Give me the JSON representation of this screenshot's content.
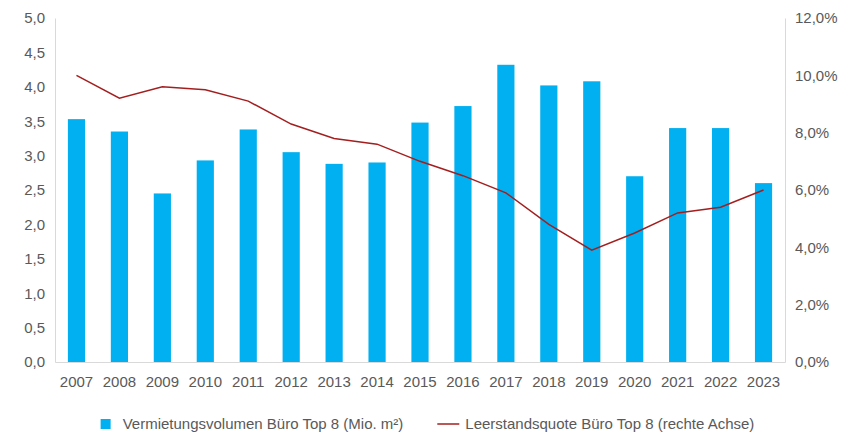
{
  "chart_data": {
    "type": "bar",
    "categories": [
      "2007",
      "2008",
      "2009",
      "2010",
      "2011",
      "2012",
      "2013",
      "2014",
      "2015",
      "2016",
      "2017",
      "2018",
      "2019",
      "2020",
      "2021",
      "2022",
      "2023"
    ],
    "series": [
      {
        "name": "Vermietungsvolumen Büro Top 8 (Mio. m²)",
        "type": "bar",
        "color": "#00b0f0",
        "values": [
          3.53,
          3.35,
          2.45,
          2.93,
          3.38,
          3.05,
          2.88,
          2.9,
          3.48,
          3.72,
          4.32,
          4.02,
          4.08,
          2.7,
          3.4,
          3.4,
          2.6
        ]
      },
      {
        "name": "Leerstandsquote Büro Top 8 (rechte Achse)",
        "type": "line",
        "axis": "y2",
        "color": "#a31f1f",
        "values": [
          10.0,
          9.2,
          9.6,
          9.5,
          9.1,
          8.3,
          7.8,
          7.6,
          7.0,
          6.5,
          5.9,
          4.8,
          3.9,
          4.5,
          5.2,
          5.4,
          6.0
        ]
      }
    ],
    "ylim": [
      0,
      5
    ],
    "yticks": [
      {
        "value": 0,
        "label": "0,0"
      },
      {
        "value": 0.5,
        "label": "0,5"
      },
      {
        "value": 1,
        "label": "1,0"
      },
      {
        "value": 1.5,
        "label": "1,5"
      },
      {
        "value": 2,
        "label": "2,0"
      },
      {
        "value": 2.5,
        "label": "2,5"
      },
      {
        "value": 3,
        "label": "3,0"
      },
      {
        "value": 3.5,
        "label": "3,5"
      },
      {
        "value": 4,
        "label": "4,0"
      },
      {
        "value": 4.5,
        "label": "4,5"
      },
      {
        "value": 5,
        "label": "5,0"
      }
    ],
    "y2lim": [
      0,
      12
    ],
    "y2ticks": [
      {
        "value": 0,
        "label": "0,0%"
      },
      {
        "value": 2,
        "label": "2,0%"
      },
      {
        "value": 4,
        "label": "4,0%"
      },
      {
        "value": 6,
        "label": "6,0%"
      },
      {
        "value": 8,
        "label": "8,0%"
      },
      {
        "value": 10,
        "label": "10,0%"
      },
      {
        "value": 12,
        "label": "12,0%"
      }
    ],
    "grid": false,
    "legend": "bottom"
  }
}
